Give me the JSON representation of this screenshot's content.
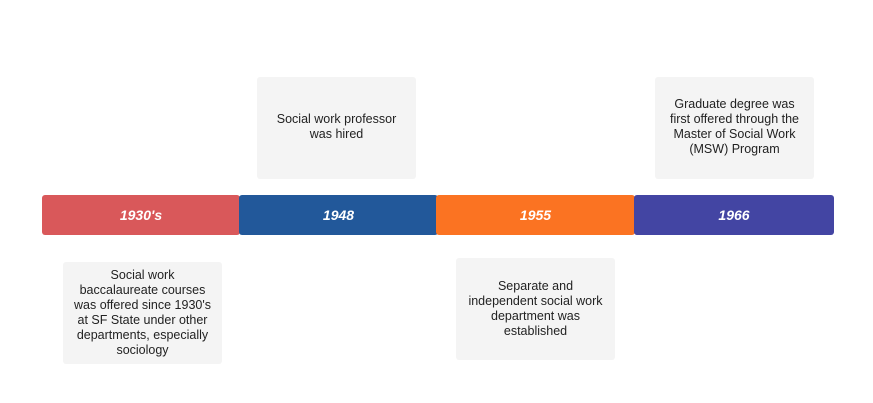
{
  "timeline": {
    "events": [
      {
        "date": "1930's",
        "description": "Social work baccalaureate courses was offered since 1930's at SF State under other departments, especially sociology"
      },
      {
        "date": "1948",
        "description": "Social work professor was hired"
      },
      {
        "date": "1955",
        "description": "Separate and independent social work department was established"
      },
      {
        "date": "1966",
        "description": "Graduate degree was first offered through the Master of Social Work (MSW) Program"
      }
    ]
  }
}
